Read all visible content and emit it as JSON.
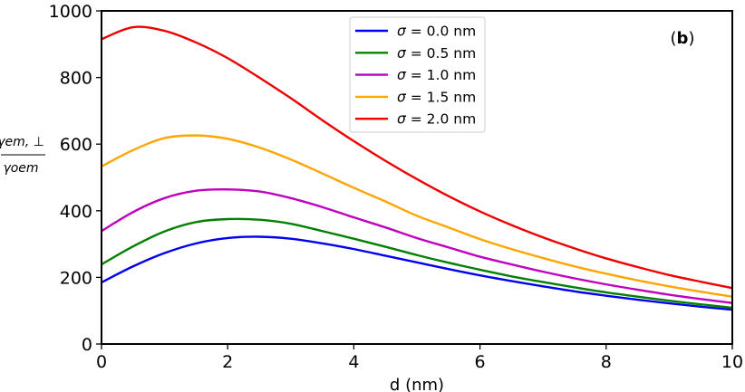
{
  "chart_data": {
    "type": "line",
    "title": "",
    "panel_label": {
      "open": "(",
      "letter": "b",
      "close": ")"
    },
    "xlabel": "d (nm)",
    "ylabel": {
      "numerator": "γem, ⊥",
      "denominator": "γoem"
    },
    "xlim": [
      0,
      10
    ],
    "ylim": [
      0,
      1000
    ],
    "x_ticks": [
      0,
      2,
      4,
      6,
      8,
      10
    ],
    "y_ticks": [
      0,
      200,
      400,
      600,
      800,
      1000
    ],
    "x_tick_labels": [
      "0",
      "2",
      "4",
      "6",
      "8",
      "10"
    ],
    "y_tick_labels": [
      "0",
      "200",
      "400",
      "600",
      "800",
      "1000"
    ],
    "grid": false,
    "legend_position": "top-center",
    "x": [
      0,
      0.5,
      1,
      1.5,
      2,
      2.5,
      3,
      3.5,
      4,
      4.5,
      5,
      5.5,
      6,
      6.5,
      7,
      7.5,
      8,
      8.5,
      9,
      9.5,
      10
    ],
    "series": [
      {
        "name": "σ = 0.0 nm",
        "sym": "σ",
        "eq": "= 0.0 nm",
        "color": "#0000ee",
        "values": [
          185,
          233,
          273,
          302,
          318,
          322,
          316,
          302,
          285,
          265,
          245,
          225,
          206,
          189,
          173,
          158,
          145,
          133,
          122,
          112,
          103
        ]
      },
      {
        "name": "σ = 0.5 nm",
        "sym": "σ",
        "eq": "= 0.5 nm",
        "color": "#008000",
        "values": [
          239,
          293,
          338,
          366,
          375,
          373,
          361,
          339,
          316,
          292,
          267,
          244,
          223,
          203,
          186,
          170,
          155,
          142,
          130,
          119,
          109
        ]
      },
      {
        "name": "σ = 1.0 nm",
        "sym": "σ",
        "eq": "= 1.0 nm",
        "color": "#bf00bf",
        "values": [
          339,
          396,
          438,
          460,
          464,
          458,
          438,
          411,
          380,
          350,
          318,
          290,
          262,
          239,
          217,
          197,
          179,
          163,
          148,
          135,
          123
        ]
      },
      {
        "name": "σ = 1.5 nm",
        "sym": "σ",
        "eq": "= 1.5 nm",
        "color": "#ffa500",
        "values": [
          533,
          582,
          618,
          626,
          616,
          590,
          554,
          512,
          469,
          428,
          385,
          350,
          315,
          285,
          258,
          233,
          211,
          191,
          173,
          157,
          142
        ]
      },
      {
        "name": "σ = 2.0 nm",
        "sym": "σ",
        "eq": "= 2.0 nm",
        "color": "#ee0000",
        "values": [
          915,
          951,
          940,
          905,
          858,
          800,
          738,
          672,
          609,
          550,
          495,
          444,
          398,
          357,
          320,
          287,
          257,
          231,
          207,
          187,
          168
        ]
      }
    ]
  }
}
